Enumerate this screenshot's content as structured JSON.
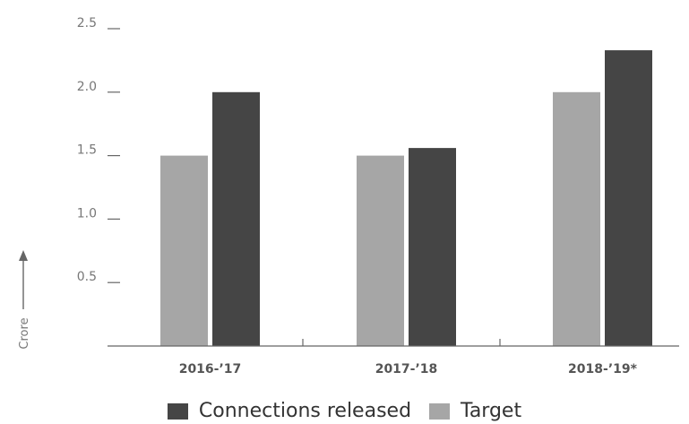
{
  "chart_data": {
    "type": "bar",
    "categories": [
      "2016-’17",
      "2017-’18",
      "2018-’19*"
    ],
    "series": [
      {
        "name": "Target",
        "values": [
          1.5,
          1.5,
          2.0
        ],
        "color": "#a6a6a6"
      },
      {
        "name": "Connections released",
        "values": [
          2.0,
          1.56,
          2.33
        ],
        "color": "#454545"
      }
    ],
    "ylim": [
      0,
      2.5
    ],
    "yticks": [
      "0.5",
      "1.0",
      "1.5",
      "2.0",
      "2.5"
    ],
    "ylabel": "Crore",
    "legend": {
      "position": "bottom",
      "order": [
        "Connections released",
        "Target"
      ]
    }
  }
}
